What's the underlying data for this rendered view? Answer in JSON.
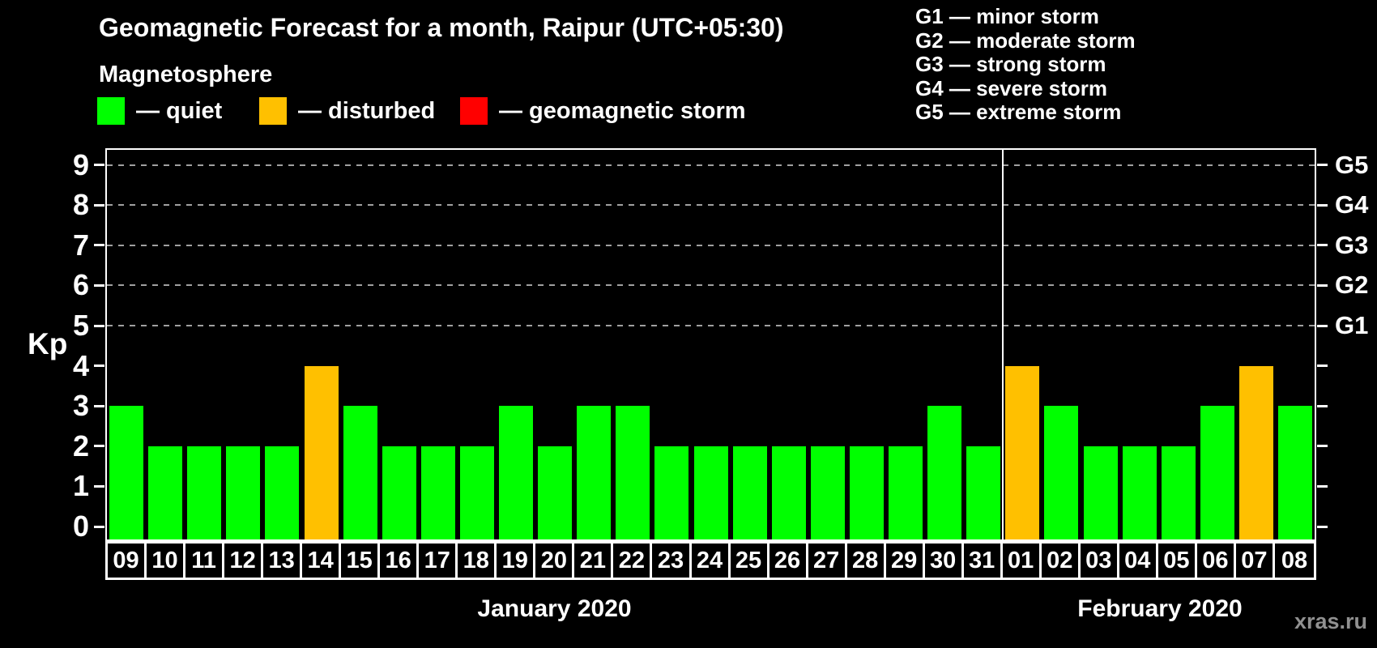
{
  "title": "Geomagnetic Forecast for a month, Raipur (UTC+05:30)",
  "subtitle": "Magnetosphere",
  "legend": {
    "items": [
      {
        "key": "quiet",
        "label": "— quiet",
        "color": "#00ff00"
      },
      {
        "key": "disturbed",
        "label": "— disturbed",
        "color": "#ffc000"
      },
      {
        "key": "storm",
        "label": "— geomagnetic storm",
        "color": "#ff0000"
      }
    ]
  },
  "storm_scale_legend": [
    "G1 — minor storm",
    "G2 — moderate storm",
    "G3 — strong storm",
    "G4 — severe storm",
    "G5 — extreme storm"
  ],
  "watermark": "xras.ru",
  "chart_data": {
    "type": "bar",
    "ylabel": "Kp",
    "ylim": [
      0,
      9
    ],
    "y_ticks": [
      0,
      1,
      2,
      3,
      4,
      5,
      6,
      7,
      8,
      9
    ],
    "gridlines_at": [
      5,
      6,
      7,
      8,
      9
    ],
    "grid": "dashed horizontal at G-storm levels only",
    "legend_position": "top",
    "status_colors": {
      "quiet": "#00ff00",
      "disturbed": "#ffc000",
      "storm": "#ff0000"
    },
    "g_scale": [
      {
        "kp": 5,
        "label": "G1"
      },
      {
        "kp": 6,
        "label": "G2"
      },
      {
        "kp": 7,
        "label": "G3"
      },
      {
        "kp": 8,
        "label": "G4"
      },
      {
        "kp": 9,
        "label": "G5"
      }
    ],
    "months": [
      {
        "label": "January 2020",
        "days": [
          {
            "day": "09",
            "kp": 3,
            "status": "quiet"
          },
          {
            "day": "10",
            "kp": 2,
            "status": "quiet"
          },
          {
            "day": "11",
            "kp": 2,
            "status": "quiet"
          },
          {
            "day": "12",
            "kp": 2,
            "status": "quiet"
          },
          {
            "day": "13",
            "kp": 2,
            "status": "quiet"
          },
          {
            "day": "14",
            "kp": 4,
            "status": "disturbed"
          },
          {
            "day": "15",
            "kp": 3,
            "status": "quiet"
          },
          {
            "day": "16",
            "kp": 2,
            "status": "quiet"
          },
          {
            "day": "17",
            "kp": 2,
            "status": "quiet"
          },
          {
            "day": "18",
            "kp": 2,
            "status": "quiet"
          },
          {
            "day": "19",
            "kp": 3,
            "status": "quiet"
          },
          {
            "day": "20",
            "kp": 2,
            "status": "quiet"
          },
          {
            "day": "21",
            "kp": 3,
            "status": "quiet"
          },
          {
            "day": "22",
            "kp": 3,
            "status": "quiet"
          },
          {
            "day": "23",
            "kp": 2,
            "status": "quiet"
          },
          {
            "day": "24",
            "kp": 2,
            "status": "quiet"
          },
          {
            "day": "25",
            "kp": 2,
            "status": "quiet"
          },
          {
            "day": "26",
            "kp": 2,
            "status": "quiet"
          },
          {
            "day": "27",
            "kp": 2,
            "status": "quiet"
          },
          {
            "day": "28",
            "kp": 2,
            "status": "quiet"
          },
          {
            "day": "29",
            "kp": 2,
            "status": "quiet"
          },
          {
            "day": "30",
            "kp": 3,
            "status": "quiet"
          },
          {
            "day": "31",
            "kp": 2,
            "status": "quiet"
          }
        ]
      },
      {
        "label": "February 2020",
        "days": [
          {
            "day": "01",
            "kp": 4,
            "status": "disturbed"
          },
          {
            "day": "02",
            "kp": 3,
            "status": "quiet"
          },
          {
            "day": "03",
            "kp": 2,
            "status": "quiet"
          },
          {
            "day": "04",
            "kp": 2,
            "status": "quiet"
          },
          {
            "day": "05",
            "kp": 2,
            "status": "quiet"
          },
          {
            "day": "06",
            "kp": 3,
            "status": "quiet"
          },
          {
            "day": "07",
            "kp": 4,
            "status": "disturbed"
          },
          {
            "day": "08",
            "kp": 3,
            "status": "quiet"
          }
        ]
      }
    ]
  }
}
